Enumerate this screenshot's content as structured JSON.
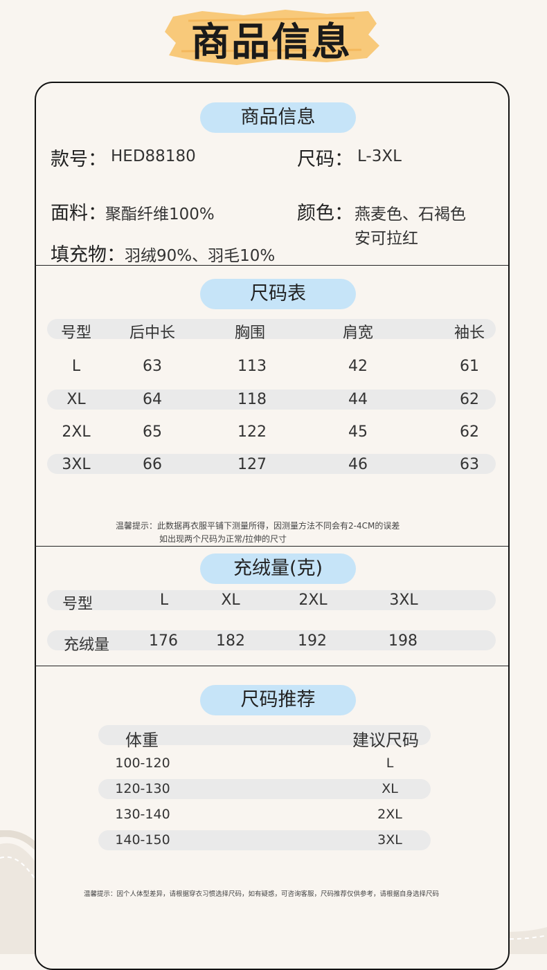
{
  "banner": {
    "title": "商品信息",
    "accent": "#f8c97a"
  },
  "product_info": {
    "pill": "商品信息",
    "style_label": "款号：",
    "style_value": "HED88180",
    "size_label": "尺码：",
    "size_value": "L-3XL",
    "fabric_label": "面料：",
    "fabric_value": "聚酯纤维100%",
    "color_label": "颜色：",
    "color_value_1": "燕麦色、石褐色",
    "color_value_2": "安可拉红",
    "filling_label": "填充物：",
    "filling_value": "羽绒90%、羽毛10%"
  },
  "size_chart": {
    "pill": "尺码表",
    "headers": [
      "号型",
      "后中长",
      "胸围",
      "肩宽",
      "袖长"
    ],
    "rows": [
      [
        "L",
        "63",
        "113",
        "42",
        "61"
      ],
      [
        "XL",
        "64",
        "118",
        "44",
        "62"
      ],
      [
        "2XL",
        "65",
        "122",
        "45",
        "62"
      ],
      [
        "3XL",
        "66",
        "127",
        "46",
        "63"
      ]
    ],
    "note_1": "温馨提示：此数据再衣服平铺下测量所得，因测量方法不同会有2-4CM的误差",
    "note_2": "如出现两个尺码为正常/拉伸的尺寸"
  },
  "fill_amount": {
    "pill": "充绒量(克)",
    "header": [
      "号型",
      "L",
      "XL",
      "2XL",
      "3XL"
    ],
    "row": [
      "充绒量",
      "176",
      "182",
      "192",
      "198"
    ]
  },
  "recommend": {
    "pill": "尺码推荐",
    "headers": [
      "体重",
      "建议尺码"
    ],
    "rows": [
      [
        "100-120",
        "L"
      ],
      [
        "120-130",
        "XL"
      ],
      [
        "130-140",
        "2XL"
      ],
      [
        "140-150",
        "3XL"
      ]
    ],
    "note": "温馨提示：因个人体型差异，请根据穿衣习惯选择尺码，如有疑惑，可咨询客服，尺码推荐仅供参考，请根据自身选择尺码"
  },
  "colors": {
    "pill": "#c6e4f8",
    "row_bg": "#eaeaea",
    "page_bg": "#f9f5f0",
    "border": "#111111"
  }
}
